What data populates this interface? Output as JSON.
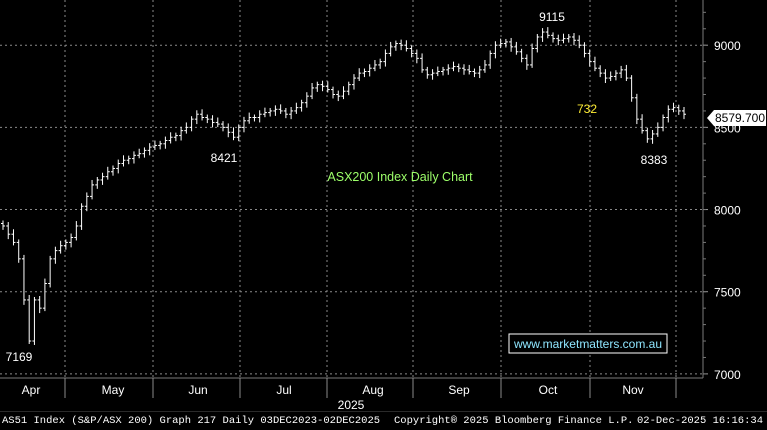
{
  "chart_data": {
    "type": "ohlc",
    "annotation": "ASX200 Index Daily Chart",
    "watermark": "www.marketmatters.com.au",
    "last_price": "8579.700",
    "ylim": [
      6975,
      9275
    ],
    "yticks": [
      7000,
      7500,
      8000,
      8500,
      9000
    ],
    "ytick_labels": [
      "7000",
      "7500",
      "8000",
      "8500",
      "9000"
    ],
    "x_months": [
      "Apr",
      "May",
      "Jun",
      "Jul",
      "Aug",
      "Sep",
      "Oct",
      "Nov"
    ],
    "x_year": "2025",
    "callouts": [
      {
        "text": "7169",
        "value": 7169
      },
      {
        "text": "8421",
        "value": 8421
      },
      {
        "text": "9115",
        "value": 9115
      },
      {
        "text": "8383",
        "value": 8383
      },
      {
        "text": "732",
        "value": 732
      }
    ],
    "series": [
      7900,
      7850,
      7800,
      7700,
      7450,
      7200,
      7450,
      7400,
      7550,
      7700,
      7750,
      7780,
      7800,
      7830,
      7900,
      8020,
      8080,
      8150,
      8180,
      8200,
      8230,
      8250,
      8280,
      8300,
      8310,
      8330,
      8340,
      8360,
      8380,
      8390,
      8400,
      8420,
      8440,
      8450,
      8480,
      8500,
      8550,
      8580,
      8560,
      8550,
      8530,
      8520,
      8500,
      8470,
      8440,
      8500,
      8540,
      8560,
      8560,
      8580,
      8590,
      8600,
      8610,
      8600,
      8580,
      8600,
      8620,
      8650,
      8690,
      8740,
      8760,
      8750,
      8730,
      8700,
      8690,
      8720,
      8760,
      8800,
      8830,
      8840,
      8860,
      8880,
      8900,
      8950,
      8990,
      9010,
      9000,
      8980,
      8950,
      8920,
      8850,
      8820,
      8830,
      8840,
      8850,
      8860,
      8870,
      8860,
      8850,
      8840,
      8830,
      8850,
      8880,
      8950,
      9000,
      9010,
      9020,
      8990,
      8960,
      8920,
      8880,
      8980,
      9050,
      9080,
      9060,
      9040,
      9030,
      9040,
      9050,
      9030,
      9000,
      8950,
      8900,
      8860,
      8830,
      8800,
      8810,
      8830,
      8850,
      8800,
      8680,
      8550,
      8480,
      8430,
      8460,
      8500,
      8560,
      8610,
      8620,
      8600,
      8580
    ]
  },
  "footer": {
    "left": "AS51 Index (S&P/ASX 200) Graph 217 Daily 03DEC2023-02DEC2025",
    "middle": "Copyright® 2025 Bloomberg Finance L.P.",
    "right": "02-Dec-2025 16:16:34"
  }
}
